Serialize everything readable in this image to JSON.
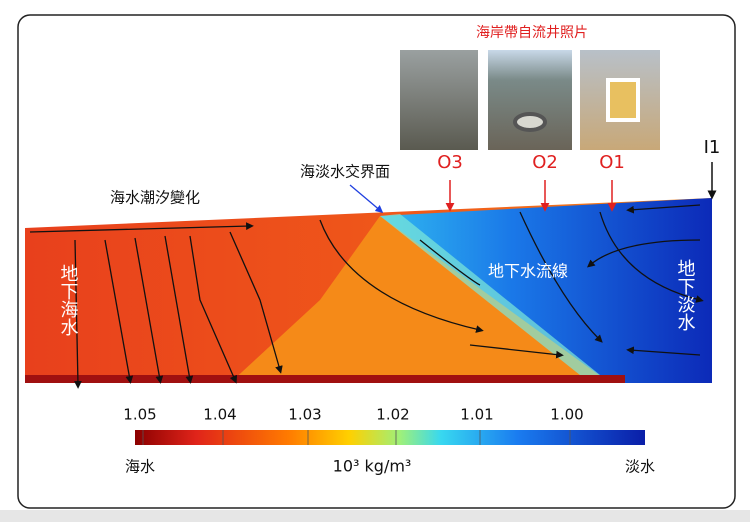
{
  "photos_title": "海岸帶自流井照片",
  "wells": {
    "inlet": "I1",
    "outlets": [
      "O3",
      "O2",
      "O1"
    ]
  },
  "labels": {
    "interface": "海淡水交界面",
    "tide": "海水潮汐變化",
    "saline_groundwater": "地下海水",
    "streamlines": "地下水流線",
    "fresh_groundwater": "地下淡水"
  },
  "colorbar": {
    "ticks": [
      "1.05",
      "1.04",
      "1.03",
      "1.02",
      "1.01",
      "1.00"
    ],
    "unit": "10³ kg/m³",
    "left_label": "海水",
    "right_label": "淡水"
  }
}
